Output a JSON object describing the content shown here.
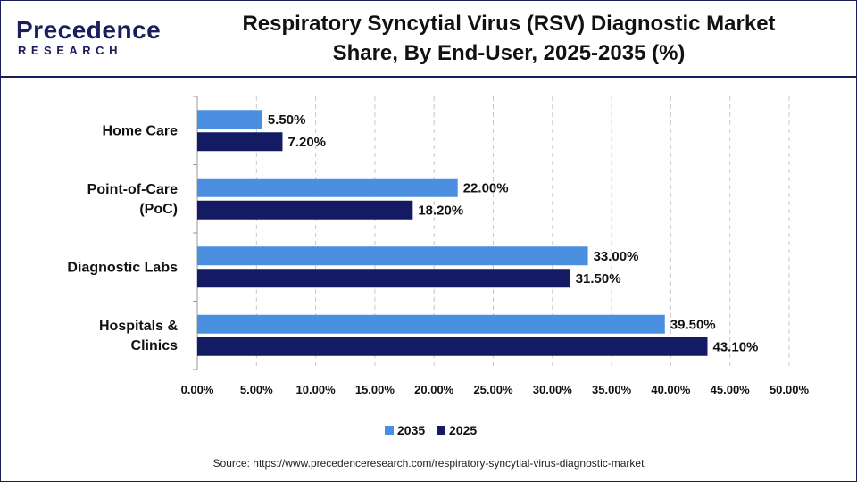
{
  "brand": {
    "name": "Precedence",
    "subtitle": "RESEARCH"
  },
  "header": {
    "title_line1": "Respiratory Syncytial Virus (RSV) Diagnostic Market",
    "title_line2": "Share, By End-User, 2025-2035 (%)"
  },
  "colors": {
    "series_2035": "#4a8fe0",
    "series_2025": "#141a63",
    "brand": "#1a1f5c"
  },
  "chart_data": {
    "type": "bar",
    "orientation": "horizontal",
    "title": "Respiratory Syncytial Virus (RSV) Diagnostic Market Share, By End-User, 2025-2035 (%)",
    "categories": [
      "Home Care",
      "Point-of-Care (PoC)",
      "Diagnostic Labs",
      "Hospitals & Clinics"
    ],
    "category_lines": [
      [
        "Home Care"
      ],
      [
        "Point-of-Care",
        "(PoC)"
      ],
      [
        "Diagnostic Labs"
      ],
      [
        "Hospitals &",
        "Clinics"
      ]
    ],
    "series": [
      {
        "name": "2035",
        "values": [
          5.5,
          22.0,
          33.0,
          39.5
        ],
        "labels": [
          "5.50%",
          "22.00%",
          "33.00%",
          "39.50%"
        ]
      },
      {
        "name": "2025",
        "values": [
          7.2,
          18.2,
          31.5,
          43.1
        ],
        "labels": [
          "7.20%",
          "18.20%",
          "31.50%",
          "43.10%"
        ]
      }
    ],
    "xlim": [
      0,
      50
    ],
    "x_ticks": [
      "0.00%",
      "5.00%",
      "10.00%",
      "15.00%",
      "20.00%",
      "25.00%",
      "30.00%",
      "35.00%",
      "40.00%",
      "45.00%",
      "50.00%"
    ],
    "xlabel": "",
    "ylabel": "",
    "grid": "vertical dashed",
    "legend_position": "bottom-center"
  },
  "source": "Source: https://www.precedenceresearch.com/respiratory-syncytial-virus-diagnostic-market"
}
